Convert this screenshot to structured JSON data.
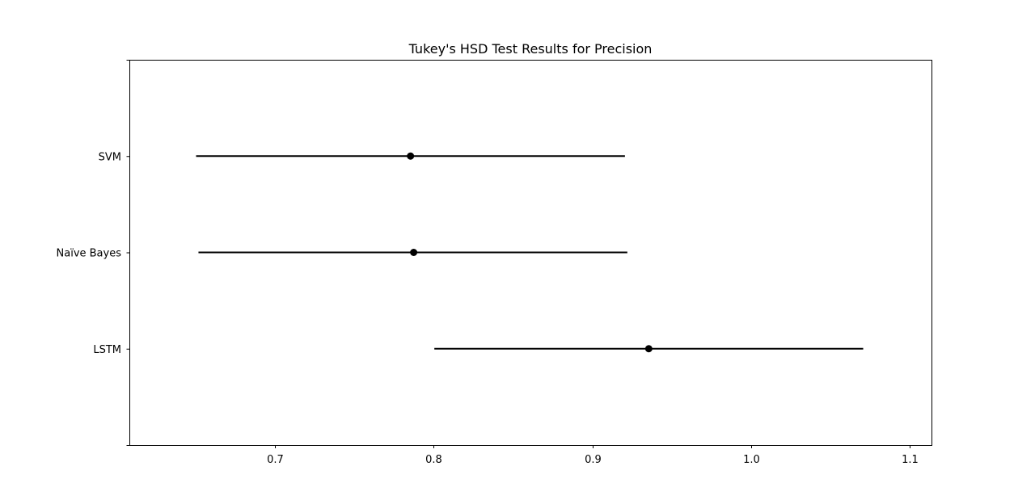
{
  "chart_data": {
    "type": "interval",
    "title": "Tukey's HSD Test Results for Precision",
    "xlabel": "",
    "ylabel": "",
    "xlim": [
      0.6085,
      1.1135
    ],
    "xticks": [
      "0.7",
      "0.8",
      "0.9",
      "1.0",
      "1.1"
    ],
    "xtick_values": [
      0.7,
      0.8,
      0.9,
      1.0,
      1.1
    ],
    "grid": false,
    "groups": [
      {
        "label": "SVM",
        "mean": 0.7855,
        "lower": 0.6505,
        "upper": 0.9205
      },
      {
        "label": "Naïve Bayes",
        "mean": 0.7875,
        "lower": 0.652,
        "upper": 0.922
      },
      {
        "label": "LSTM",
        "mean": 0.9355,
        "lower": 0.8005,
        "upper": 1.0705
      }
    ],
    "colors": {
      "line": "#000000",
      "marker": "#000000",
      "axes": "#000000",
      "background": "#ffffff"
    }
  }
}
